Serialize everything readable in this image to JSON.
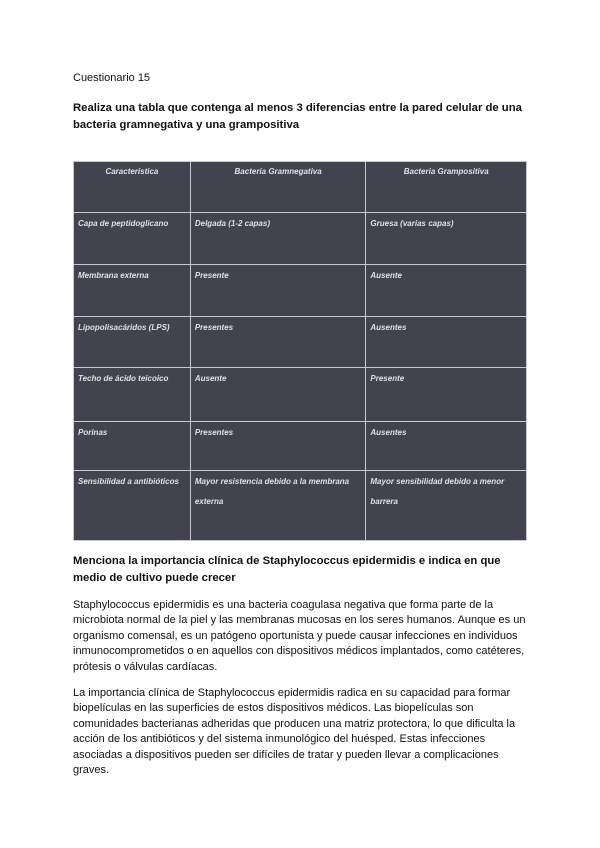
{
  "doc_title": "Cuestionario 15",
  "q1": "Realiza una tabla que contenga al menos 3 diferencias entre la pared celular de una bacteria gramnegativa y una grampositiva",
  "table": {
    "headers": [
      "Característica",
      "Bacteria Gramnegativa",
      "Bacteria Grampositiva"
    ],
    "rows": [
      [
        "Capa de peptidoglicano",
        "Delgada (1-2 capas)",
        "Gruesa (varias capas)"
      ],
      [
        "Membrana externa",
        "Presente",
        "Ausente"
      ],
      [
        "Lipopolisacáridos (LPS)",
        "Presentes",
        "Ausentes"
      ],
      [
        "Techo de ácido teicoico",
        "Ausente",
        "Presente"
      ],
      [
        "Porinas",
        "Presentes",
        "Ausentes"
      ],
      [
        "Sensibilidad a antibióticos",
        "Mayor resistencia debido a la membrana externa",
        "Mayor sensibilidad debido a menor barrera"
      ]
    ]
  },
  "q2": "Menciona la importancia clínica de Staphylococcus epidermidis e indica en que medio de cultivo puede crecer",
  "p1": "Staphylococcus epidermidis es una bacteria coagulasa negativa que forma parte de la microbiota normal de la piel y las membranas mucosas en los seres humanos. Aunque es un organismo comensal, es un patógeno oportunista y puede causar infecciones en individuos inmunocomprometidos o en aquellos con dispositivos médicos implantados, como catéteres, prótesis o válvulas cardíacas.",
  "p2": "La importancia clínica de Staphylococcus epidermidis radica en su capacidad para formar biopelículas en las superficies de estos dispositivos médicos. Las biopelículas son comunidades bacterianas adheridas que producen una matriz protectora, lo que dificulta la acción de los antibióticos y del sistema inmunológico del huésped. Estas infecciones asociadas a dispositivos pueden ser difíciles de tratar y pueden llevar a complicaciones graves."
}
